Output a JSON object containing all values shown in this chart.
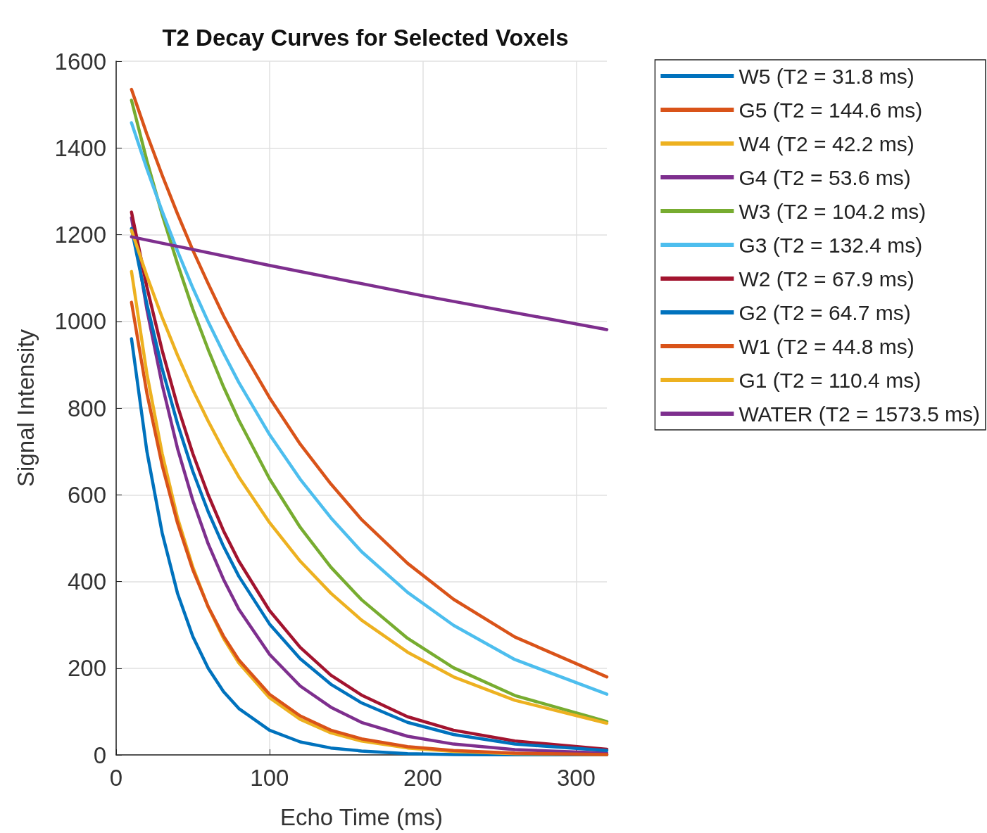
{
  "chart_data": {
    "type": "line",
    "title": "T2 Decay Curves for Selected Voxels",
    "xlabel": "Echo Time (ms)",
    "ylabel": "Signal Intensity",
    "x": [
      10,
      20,
      30,
      40,
      50,
      60,
      70,
      80,
      100,
      120,
      140,
      160,
      190,
      220,
      260,
      320
    ],
    "series": [
      {
        "name": "W5 (T2 = 31.8 ms)",
        "color": "#0072bd",
        "values": [
          960,
          701,
          512,
          373,
          273,
          200,
          146,
          107,
          57,
          30,
          16,
          9,
          3,
          1,
          0,
          0
        ]
      },
      {
        "name": "G5 (T2 = 144.6 ms)",
        "color": "#d95319",
        "values": [
          1535,
          1432,
          1337,
          1248,
          1164,
          1087,
          1013,
          946,
          824,
          717,
          625,
          543,
          442,
          359,
          272,
          180
        ]
      },
      {
        "name": "W4 (T2 = 42.2 ms)",
        "color": "#edb120",
        "values": [
          1115,
          880,
          695,
          547,
          433,
          341,
          269,
          212,
          132,
          82,
          51,
          32,
          16,
          8,
          3,
          1
        ]
      },
      {
        "name": "G4 (T2 = 53.6 ms)",
        "color": "#7e2f8e",
        "values": [
          1239,
          1028,
          854,
          707,
          587,
          487,
          405,
          336,
          232,
          159,
          110,
          75,
          43,
          25,
          12,
          4
        ]
      },
      {
        "name": "W3 (T2 = 104.2 ms)",
        "color": "#77ac30",
        "values": [
          1510,
          1371,
          1246,
          1133,
          1028,
          935,
          849,
          772,
          637,
          525,
          433,
          358,
          269,
          201,
          137,
          77
        ]
      },
      {
        "name": "G3 (T2 = 132.4 ms)",
        "color": "#4dbeee",
        "values": [
          1458,
          1352,
          1254,
          1162,
          1077,
          999,
          927,
          859,
          739,
          636,
          547,
          469,
          375,
          299,
          220,
          140
        ]
      },
      {
        "name": "W2 (T2 = 67.9 ms)",
        "color": "#a2142f",
        "values": [
          1252,
          1080,
          933,
          805,
          695,
          600,
          517,
          447,
          333,
          248,
          184,
          138,
          88,
          57,
          32,
          13
        ]
      },
      {
        "name": "G2 (T2 = 64.7 ms)",
        "color": "#0072bd",
        "values": [
          1214,
          1040,
          891,
          764,
          654,
          561,
          481,
          412,
          302,
          222,
          163,
          120,
          75,
          47,
          25,
          10
        ]
      },
      {
        "name": "W1 (T2 = 44.8 ms)",
        "color": "#d95319",
        "values": [
          1044,
          835,
          668,
          535,
          427,
          342,
          274,
          219,
          140,
          90,
          57,
          37,
          19,
          10,
          4,
          1
        ]
      },
      {
        "name": "G1 (T2 = 110.4 ms)",
        "color": "#edb120",
        "values": [
          1210,
          1105,
          1009,
          922,
          842,
          770,
          703,
          641,
          536,
          447,
          373,
          311,
          237,
          180,
          126,
          73
        ]
      },
      {
        "name": "WATER (T2 = 1573.5 ms)",
        "color": "#7e2f8e",
        "x": [
          10,
          100,
          200,
          320
        ],
        "values": [
          1195,
          1129,
          1059,
          981
        ]
      }
    ],
    "xlim": [
      0,
      320
    ],
    "xticks": [
      0,
      100,
      200,
      300
    ],
    "ylim": [
      0,
      1600
    ],
    "yticks": [
      0,
      200,
      400,
      600,
      800,
      1000,
      1200,
      1400,
      1600
    ],
    "grid": true,
    "legend": "top right",
    "line_style": "solid"
  }
}
